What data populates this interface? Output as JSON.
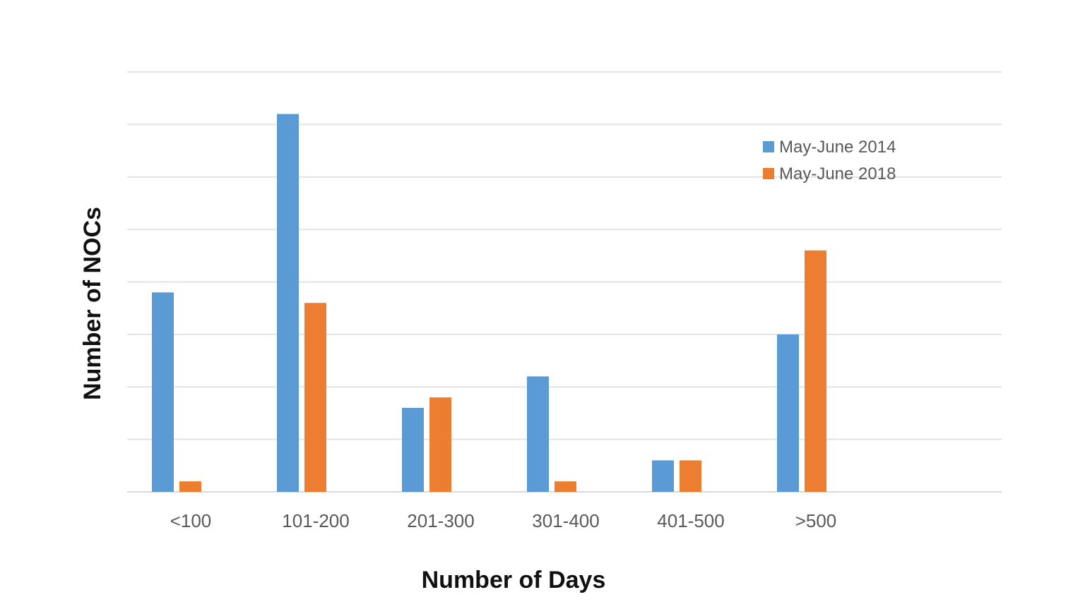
{
  "chart_data": {
    "type": "bar",
    "title": "",
    "xlabel": "Number of Days",
    "ylabel": "Number of NOCs",
    "categories": [
      "<100",
      "101-200",
      "201-300",
      "301-400",
      "401-500",
      ">500"
    ],
    "series": [
      {
        "name": "May-June 2014",
        "color": "#5b9bd5",
        "values": [
          3.8,
          7.2,
          1.6,
          2.2,
          0.6,
          3.0
        ]
      },
      {
        "name": "May-June 2018",
        "color": "#ed7d31",
        "values": [
          0.2,
          3.6,
          1.8,
          0.2,
          0.6,
          4.6
        ]
      }
    ],
    "ylim": [
      0,
      8
    ],
    "grid": true,
    "y_tick_labels_shown": false,
    "legend_position": "top-right"
  }
}
